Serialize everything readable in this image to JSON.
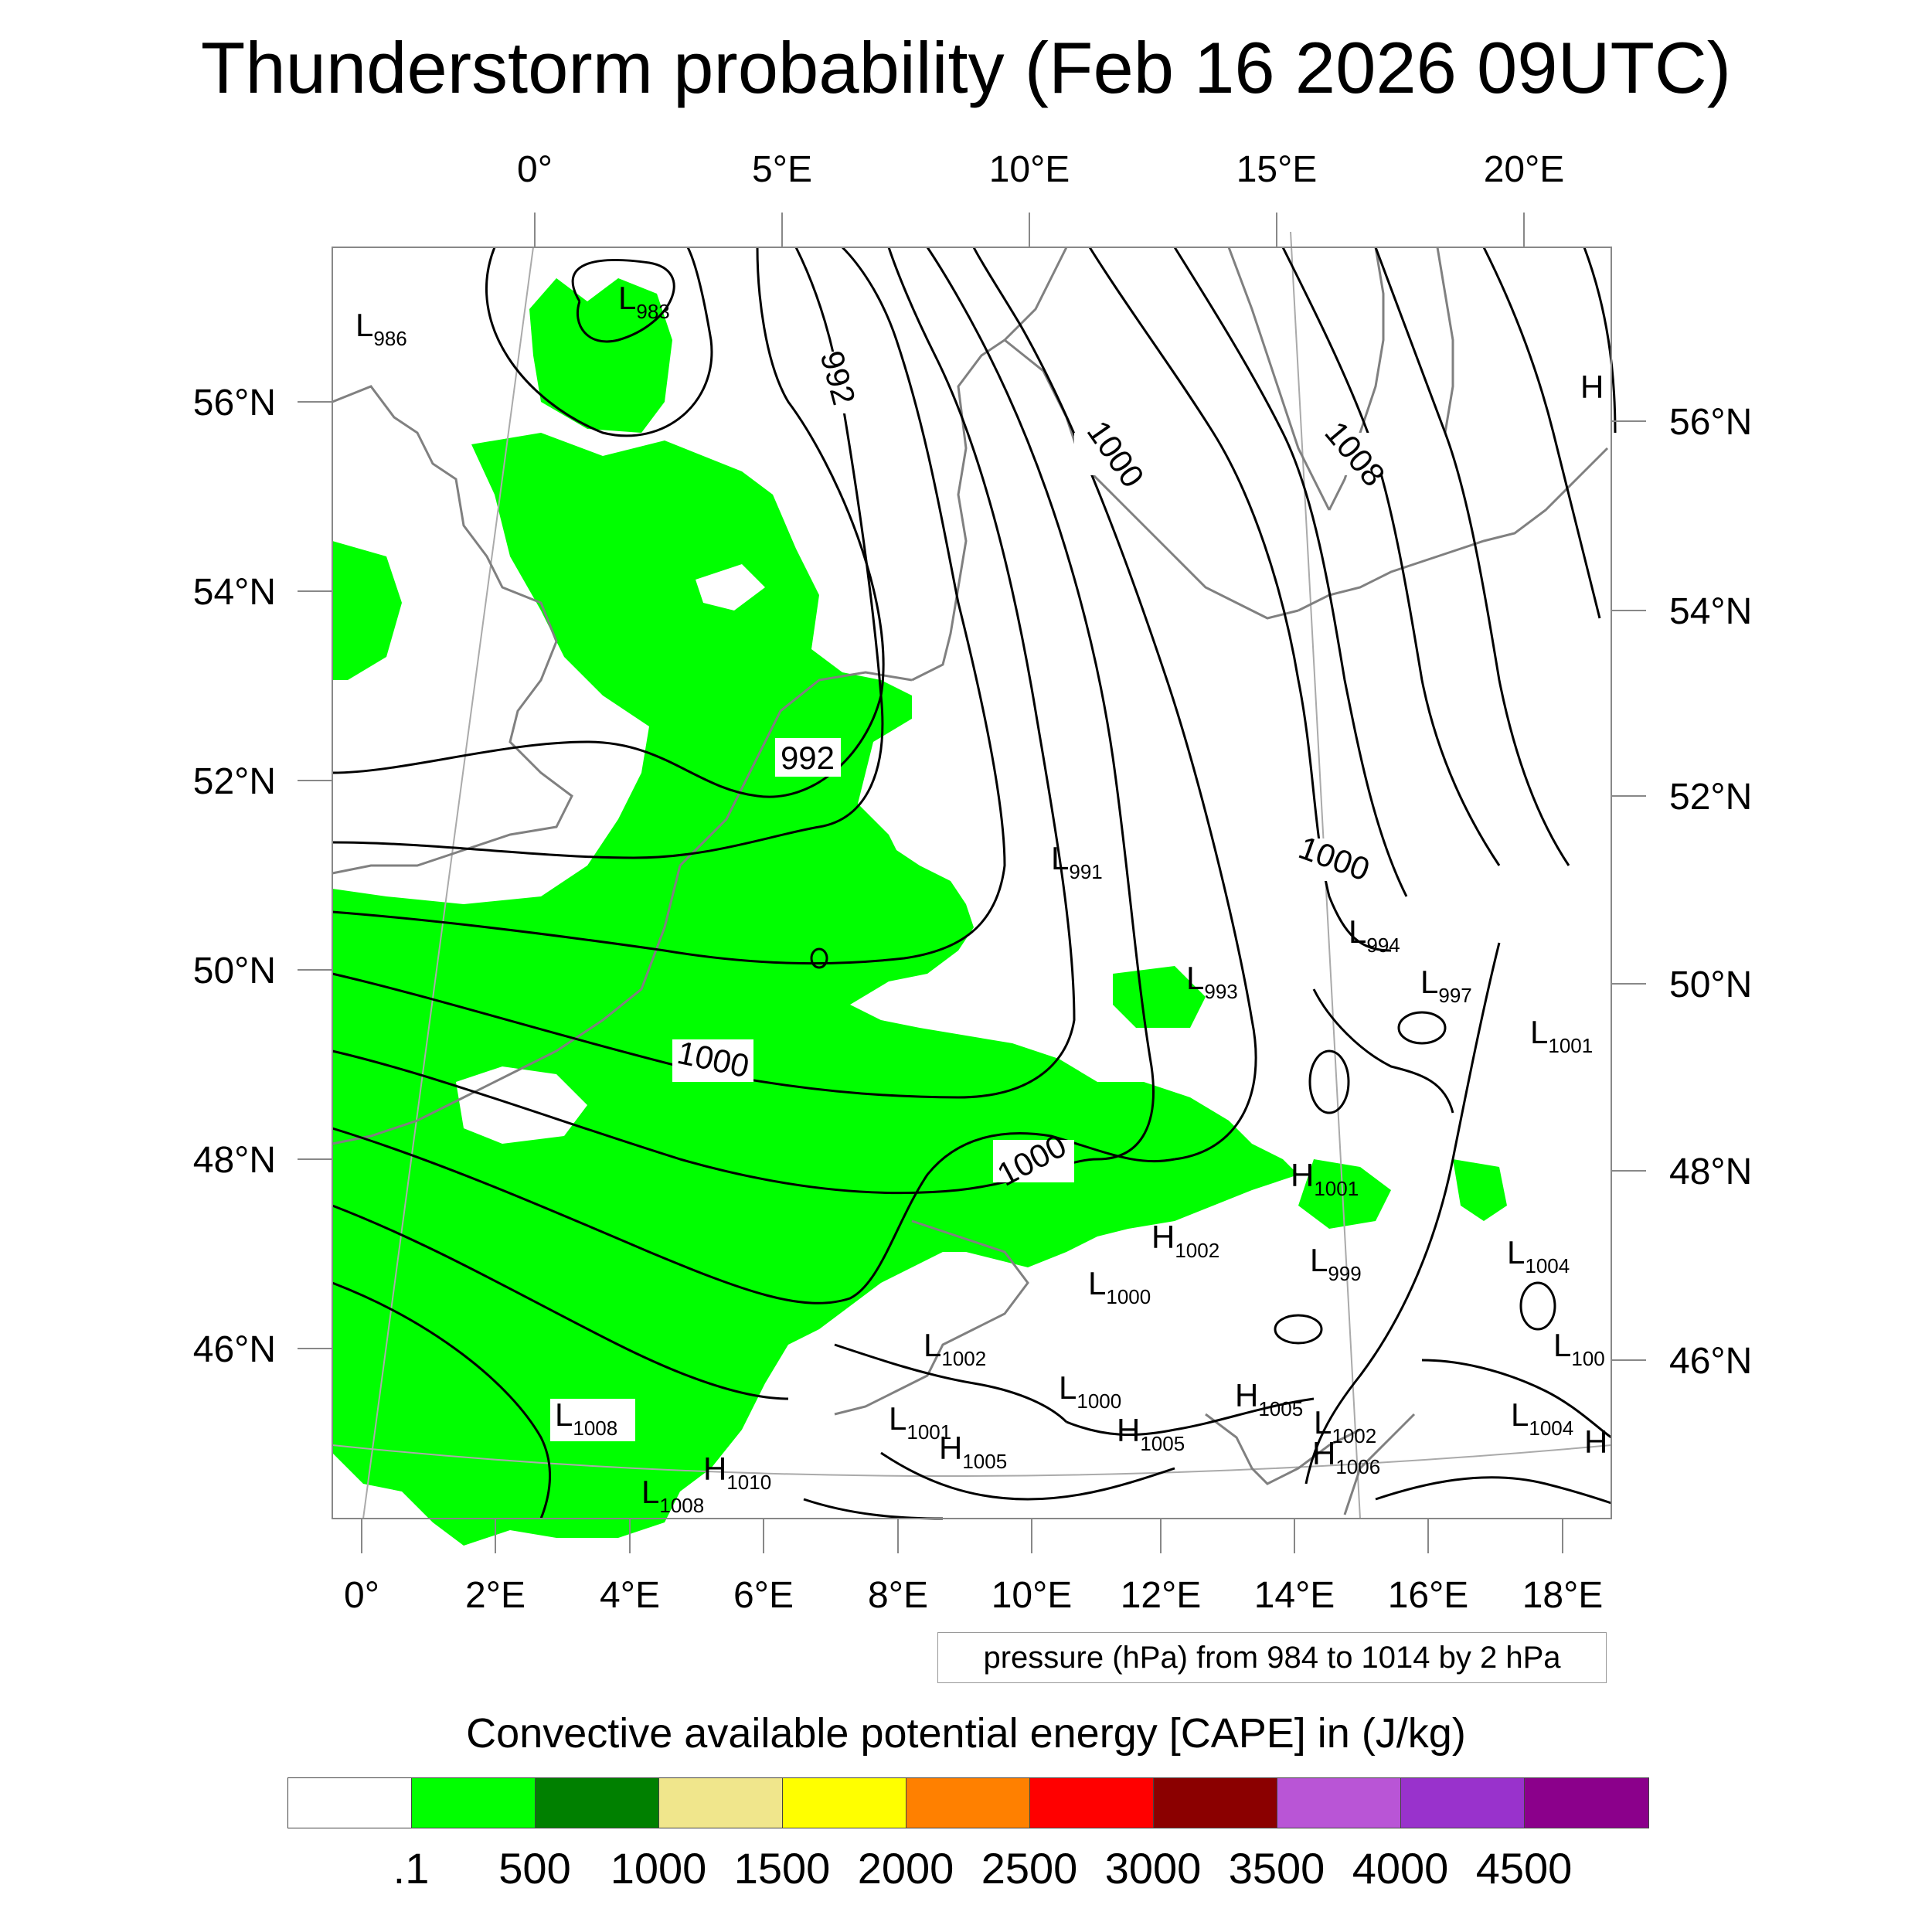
{
  "title": "Thunderstorm probability (Feb 16 2026 09UTC)",
  "top_axis": {
    "labels": [
      "0°",
      "5°E",
      "10°E",
      "15°E",
      "20°E"
    ]
  },
  "bottom_axis": {
    "labels": [
      "0°",
      "2°E",
      "4°E",
      "6°E",
      "8°E",
      "10°E",
      "12°E",
      "14°E",
      "16°E",
      "18°E"
    ]
  },
  "left_axis": {
    "labels": [
      "56°N",
      "54°N",
      "52°N",
      "50°N",
      "48°N",
      "46°N"
    ]
  },
  "right_axis": {
    "labels": [
      "56°N",
      "54°N",
      "52°N",
      "50°N",
      "48°N",
      "46°N"
    ]
  },
  "isobar_labels": [
    "992",
    "992",
    "1000",
    "1008",
    "1000",
    "1000",
    "1000"
  ],
  "pressure_centers": [
    {
      "type": "L",
      "value": "983"
    },
    {
      "type": "L",
      "value": "986"
    },
    {
      "type": "H",
      "value": ""
    },
    {
      "type": "L",
      "value": "991"
    },
    {
      "type": "L",
      "value": "994"
    },
    {
      "type": "L",
      "value": "993"
    },
    {
      "type": "L",
      "value": "997"
    },
    {
      "type": "L",
      "value": "1001"
    },
    {
      "type": "H",
      "value": "1001"
    },
    {
      "type": "H",
      "value": "1002"
    },
    {
      "type": "L",
      "value": "999"
    },
    {
      "type": "L",
      "value": "1000"
    },
    {
      "type": "L",
      "value": "1004"
    },
    {
      "type": "L",
      "value": "1002"
    },
    {
      "type": "L",
      "value": "100"
    },
    {
      "type": "L",
      "value": "1000"
    },
    {
      "type": "L",
      "value": "1001"
    },
    {
      "type": "H",
      "value": "1005"
    },
    {
      "type": "H",
      "value": "1005"
    },
    {
      "type": "H",
      "value": "1005"
    },
    {
      "type": "L",
      "value": "1002"
    },
    {
      "type": "L",
      "value": "1004"
    },
    {
      "type": "H",
      "value": ""
    },
    {
      "type": "L",
      "value": "1008"
    },
    {
      "type": "H",
      "value": "1010"
    },
    {
      "type": "L",
      "value": "1008"
    },
    {
      "type": "H",
      "value": "1006"
    }
  ],
  "pressure_info": "pressure (hPa) from 984 to 1014 by 2 hPa",
  "colorbar": {
    "title": "Convective available potential energy [CAPE] in (J/kg)",
    "colors": [
      "#ffffff",
      "#00ff00",
      "#008000",
      "#f0e68c",
      "#ffff00",
      "#ff8000",
      "#ff0000",
      "#8b0000",
      "#b955d6",
      "#9932cc",
      "#8b008b"
    ],
    "labels": [
      ".1",
      "500",
      "1000",
      "1500",
      "2000",
      "2500",
      "3000",
      "3500",
      "4000",
      "4500"
    ]
  }
}
